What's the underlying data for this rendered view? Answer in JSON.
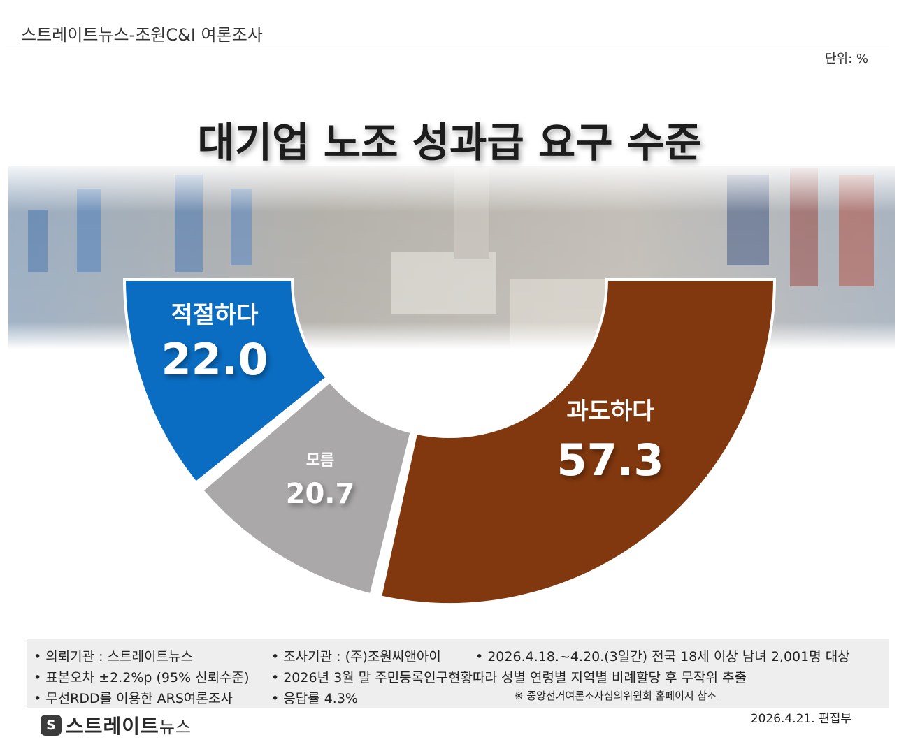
{
  "header": {
    "title": "스트레이트뉴스-조원C&I 여론조사",
    "unit": "단위: %"
  },
  "chart_data": {
    "type": "pie",
    "title": "대기업 노조 성과급 요구 수준",
    "unit": "%",
    "slices": [
      {
        "label": "적절하다",
        "value": 22.0,
        "display": "22.0",
        "color": "#0a6dc2"
      },
      {
        "label": "모름",
        "value": 20.7,
        "display": "20.7",
        "color": "#aaa8a9"
      },
      {
        "label": "과도하다",
        "value": 57.3,
        "display": "57.3",
        "color": "#82380e"
      }
    ]
  },
  "footer": {
    "notes": [
      "의뢰기관 : 스트레이트뉴스",
      "조사기관 : (주)조원씨앤아이",
      "2026.4.18.~4.20.(3일간) 전국 18세 이상 남녀 2,001명 대상",
      "표본오차 ±2.2%p (95% 신뢰수준)",
      "2026년 3월 말 주민등록인구현황따라 성별 연령별 지역별 비례할당 후 무작위 추출",
      "무선RDD를 이용한 ARS여론조사",
      "응답률 4.3%"
    ],
    "bullet": "•",
    "reference": "※ 중앙선거여론조사심의위원회 홈페이지 참조",
    "date": "2026.4.21.  편집부"
  },
  "logo": {
    "mark": "S",
    "name": "스트레이트",
    "suffix": "뉴스"
  }
}
